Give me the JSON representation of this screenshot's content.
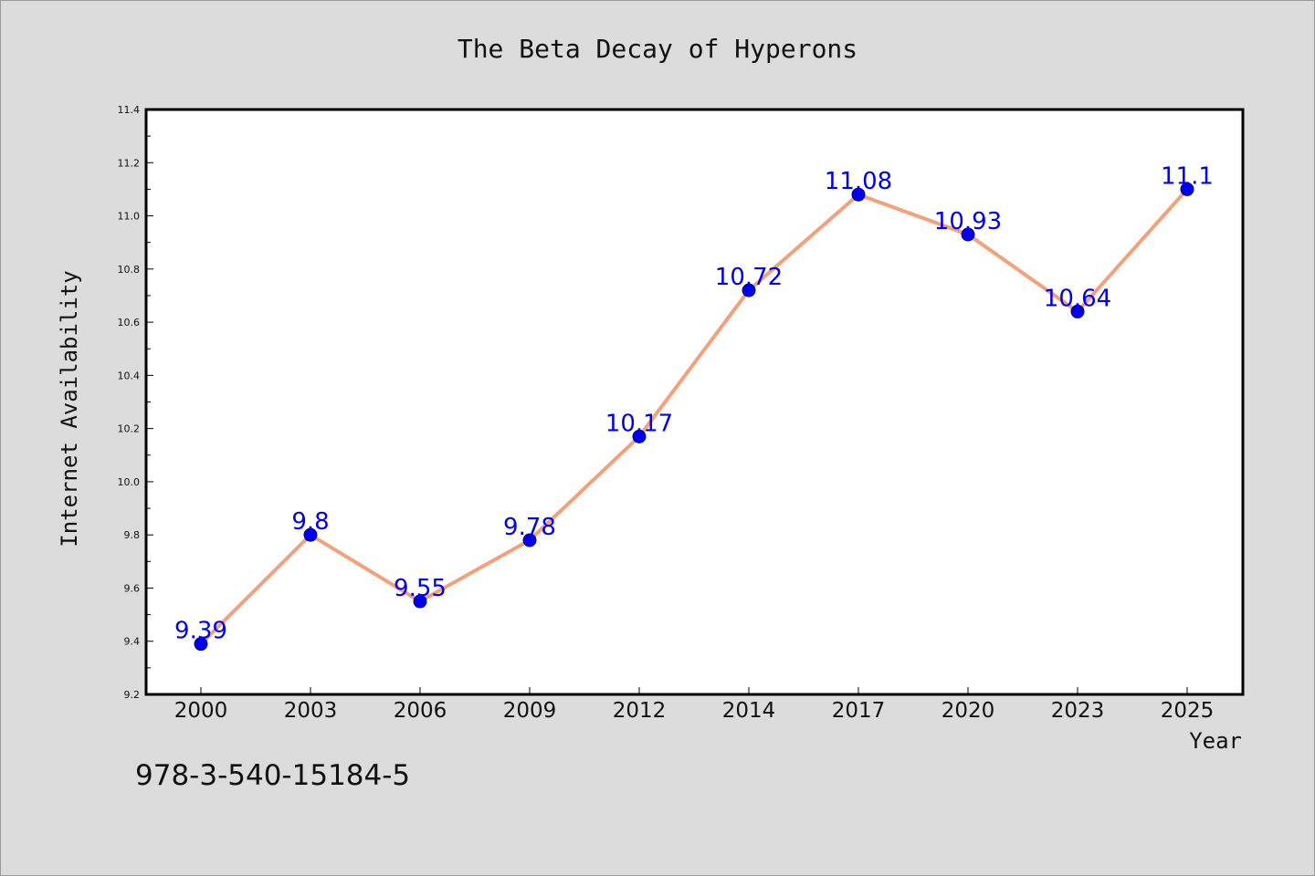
{
  "chart_data": {
    "type": "line",
    "title": "The Beta Decay of Hyperons",
    "xlabel": "Year",
    "ylabel": "Internet Availability",
    "categories": [
      "2000",
      "2003",
      "2006",
      "2009",
      "2012",
      "2014",
      "2017",
      "2020",
      "2023",
      "2025"
    ],
    "series": [
      {
        "values": [
          9.39,
          9.8,
          9.55,
          9.78,
          10.17,
          10.72,
          11.08,
          10.93,
          10.64,
          11.1
        ],
        "data_labels": [
          "9.39",
          "9.8",
          "9.55",
          "9.78",
          "10.17",
          "10.72",
          "11.08",
          "10.93",
          "10.64",
          "11.1"
        ],
        "line_color": "#f4a07a",
        "marker_color": "#0000ee",
        "label_color": "#0000ee"
      }
    ],
    "ylim": [
      9.2,
      11.4
    ],
    "yticks": [
      "9.2",
      "9.4",
      "9.6",
      "9.8",
      "10.0",
      "10.2",
      "10.4",
      "10.6",
      "10.8",
      "11.0",
      "11.2",
      "11.4"
    ],
    "grid": false,
    "background_color": "#dcdcdc",
    "plot_background_color": "#ffffff"
  },
  "footnote": "978-3-540-15184-5"
}
